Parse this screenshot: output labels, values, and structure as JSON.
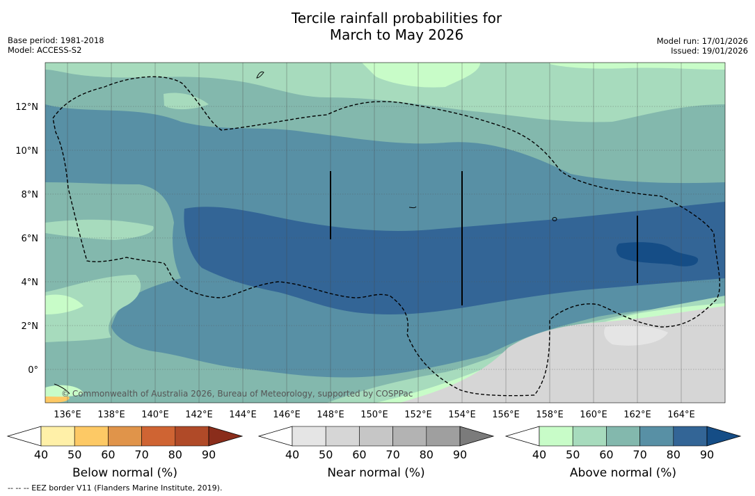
{
  "title_line1": "Tercile rainfall probabilities for",
  "title_line2": "March to May 2026",
  "base_period": "Base period: 1981-2018",
  "model": "Model: ACCESS-S2",
  "model_run": "Model run: 17/01/2026",
  "issued": "Issued: 19/01/2026",
  "copyright": "© Commonwealth of Australia 2026, Bureau of Meteorology, supported by COSPPac",
  "footnote": "--  --  -- EEZ border V11 (Flanders Marine Institute, 2019).",
  "lat_labels": [
    "12°N",
    "10°N",
    "8°N",
    "6°N",
    "4°N",
    "2°N",
    "0°"
  ],
  "lon_labels": [
    "136°E",
    "138°E",
    "140°E",
    "142°E",
    "144°E",
    "146°E",
    "148°E",
    "150°E",
    "152°E",
    "154°E",
    "156°E",
    "158°E",
    "160°E",
    "162°E",
    "164°E"
  ],
  "colorbars": [
    {
      "label": "Below normal (%)",
      "ticks": [
        "40",
        "50",
        "60",
        "70",
        "80",
        "90"
      ],
      "colors": [
        "#fff0a8",
        "#fdc965",
        "#e0944a",
        "#cf6433",
        "#b04a28",
        "#8a2d1b"
      ]
    },
    {
      "label": "Near normal (%)",
      "ticks": [
        "40",
        "50",
        "60",
        "70",
        "80",
        "90"
      ],
      "colors": [
        "#e5e5e5",
        "#d6d6d6",
        "#c6c6c6",
        "#b3b3b3",
        "#9f9f9f",
        "#7b7b7b"
      ]
    },
    {
      "label": "Above normal (%)",
      "ticks": [
        "40",
        "50",
        "60",
        "70",
        "80",
        "90"
      ],
      "colors": [
        "#c8fcc8",
        "#a7dbbd",
        "#83b8ad",
        "#5890a5",
        "#336596",
        "#154d86"
      ]
    }
  ]
}
